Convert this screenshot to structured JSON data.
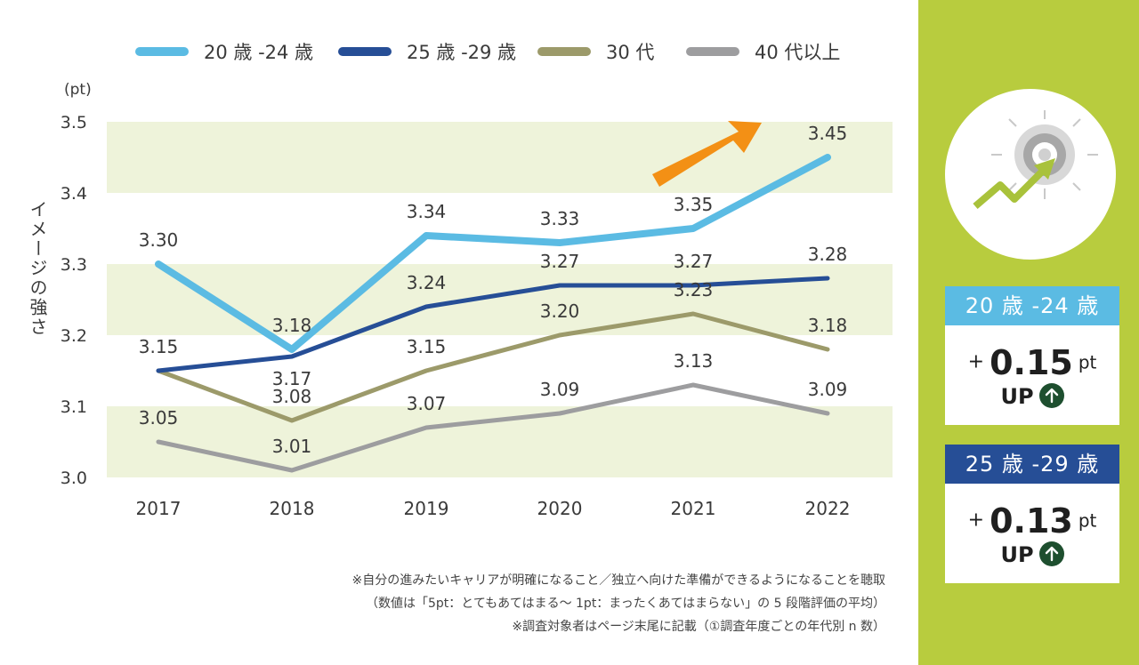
{
  "chart_data": {
    "type": "line",
    "ylabel": "イメージの強さ",
    "yunit": "(pt)",
    "ylim": [
      3.0,
      3.5
    ],
    "yticks": [
      "3.0",
      "3.1",
      "3.2",
      "3.3",
      "3.4",
      "3.5"
    ],
    "categories": [
      "2017",
      "2018",
      "2019",
      "2020",
      "2021",
      "2022"
    ],
    "legend_position": "top",
    "series": [
      {
        "name": "20 歳 -24 歳",
        "color": "#5bbbe3",
        "values": [
          3.3,
          3.18,
          3.34,
          3.33,
          3.35,
          3.45
        ],
        "labels": [
          "3.30",
          "3.18",
          "3.34",
          "3.33",
          "3.35",
          "3.45"
        ]
      },
      {
        "name": "25 歳 -29 歳",
        "color": "#264e96",
        "values": [
          3.15,
          3.17,
          3.24,
          3.27,
          3.27,
          3.28
        ],
        "labels": [
          "3.15",
          "3.17",
          "3.24",
          "3.27",
          "3.27",
          "3.28"
        ]
      },
      {
        "name": "30 代",
        "color": "#9c9a6a",
        "values": [
          3.15,
          3.08,
          3.15,
          3.2,
          3.23,
          3.18
        ],
        "labels": [
          "",
          "3.08",
          "3.15",
          "3.20",
          "3.23",
          "3.18"
        ]
      },
      {
        "name": "40 代以上",
        "color": "#9d9d9f",
        "values": [
          3.05,
          3.01,
          3.07,
          3.09,
          3.13,
          3.09
        ],
        "labels": [
          "3.05",
          "3.01",
          "3.07",
          "3.09",
          "3.13",
          "3.09"
        ]
      }
    ],
    "band_color": "#eef3da",
    "arrow_color": "#f39015"
  },
  "side": {
    "background": "#b8cc3e",
    "icon": "target-growth-icon",
    "badges": [
      {
        "title": "20 歳 -24 歳",
        "color": "#5bbbe3",
        "plus": "+",
        "delta": "0.15",
        "unit": "pt",
        "up": "UP"
      },
      {
        "title": "25 歳 -29 歳",
        "color": "#264e96",
        "plus": "+",
        "delta": "0.13",
        "unit": "pt",
        "up": "UP"
      }
    ]
  },
  "notes": [
    "※自分の進みたいキャリアが明確になること／独立へ向けた準備ができるようになることを聴取",
    "（数値は「5pt：とてもあてはまる〜 1pt：まったくあてはまらない」の 5 段階評価の平均）",
    "※調査対象者はページ末尾に記載（①調査年度ごとの年代別 n 数）"
  ]
}
